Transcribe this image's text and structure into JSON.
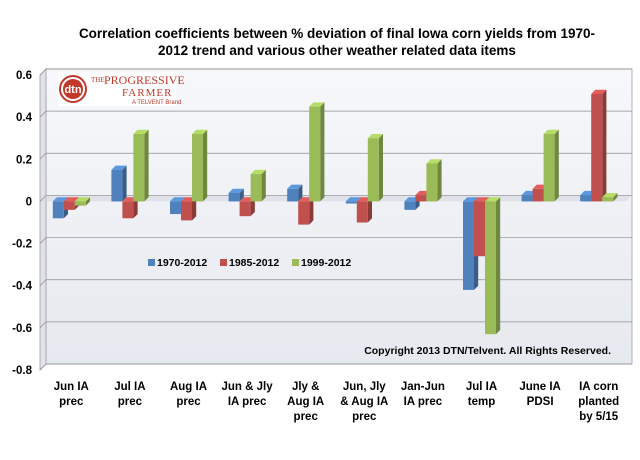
{
  "chart_data": {
    "type": "bar",
    "title_lines": [
      "Correlation coefficients between % deviation of final Iowa corn yields from 1970-",
      "2012 trend and various other weather related data items"
    ],
    "categories": [
      [
        "Jun IA",
        "prec"
      ],
      [
        "Jul IA",
        "prec"
      ],
      [
        "Aug IA",
        "prec"
      ],
      [
        "Jun & Jly",
        "IA prec"
      ],
      [
        "Jly &",
        "Aug IA",
        "prec"
      ],
      [
        "Jun, Jly",
        "& Aug IA",
        "prec"
      ],
      [
        "Jan-Jun",
        "IA prec"
      ],
      [
        "Jul IA",
        "temp"
      ],
      [
        "June IA",
        "PDSI"
      ],
      [
        "IA corn",
        "planted",
        "by 5/15"
      ]
    ],
    "series": [
      {
        "name": "1970-2012",
        "color": "#4f81bd",
        "values": [
          -0.08,
          0.15,
          -0.06,
          0.04,
          0.06,
          -0.01,
          -0.04,
          -0.42,
          0.03,
          0.03
        ]
      },
      {
        "name": "1985-2012",
        "color": "#c0504d",
        "values": [
          -0.04,
          -0.08,
          -0.09,
          -0.07,
          -0.11,
          -0.1,
          0.03,
          -0.26,
          0.06,
          0.51
        ]
      },
      {
        "name": "1999-2012",
        "color": "#9bbb59",
        "values": [
          -0.02,
          0.32,
          0.32,
          0.13,
          0.45,
          0.3,
          0.18,
          -0.63,
          0.32,
          0.02
        ]
      }
    ],
    "ylim": [
      -0.8,
      0.6
    ],
    "yticks": [
      "0.6",
      "0.4",
      "0.2",
      "0",
      "-0.2",
      "-0.4",
      "-0.6",
      "-0.8"
    ],
    "ytick_values": [
      0.6,
      0.4,
      0.2,
      0,
      -0.2,
      -0.4,
      -0.6,
      -0.8
    ],
    "grid": true,
    "legend_position": "center-left",
    "copyright": "Copyright 2013 DTN/Telvent. All Rights Reserved."
  },
  "logo": {
    "dtn": "dtn",
    "the": "THE",
    "progressive": "PROGRESSIVE",
    "farmer": "FARMER",
    "brand": "A TELVENT Brand"
  },
  "colors": {
    "plot_back": "#eef0f4",
    "floor": "#d0d4dc",
    "grid": "#8d8d8d",
    "logo_red": "#c0392b"
  }
}
